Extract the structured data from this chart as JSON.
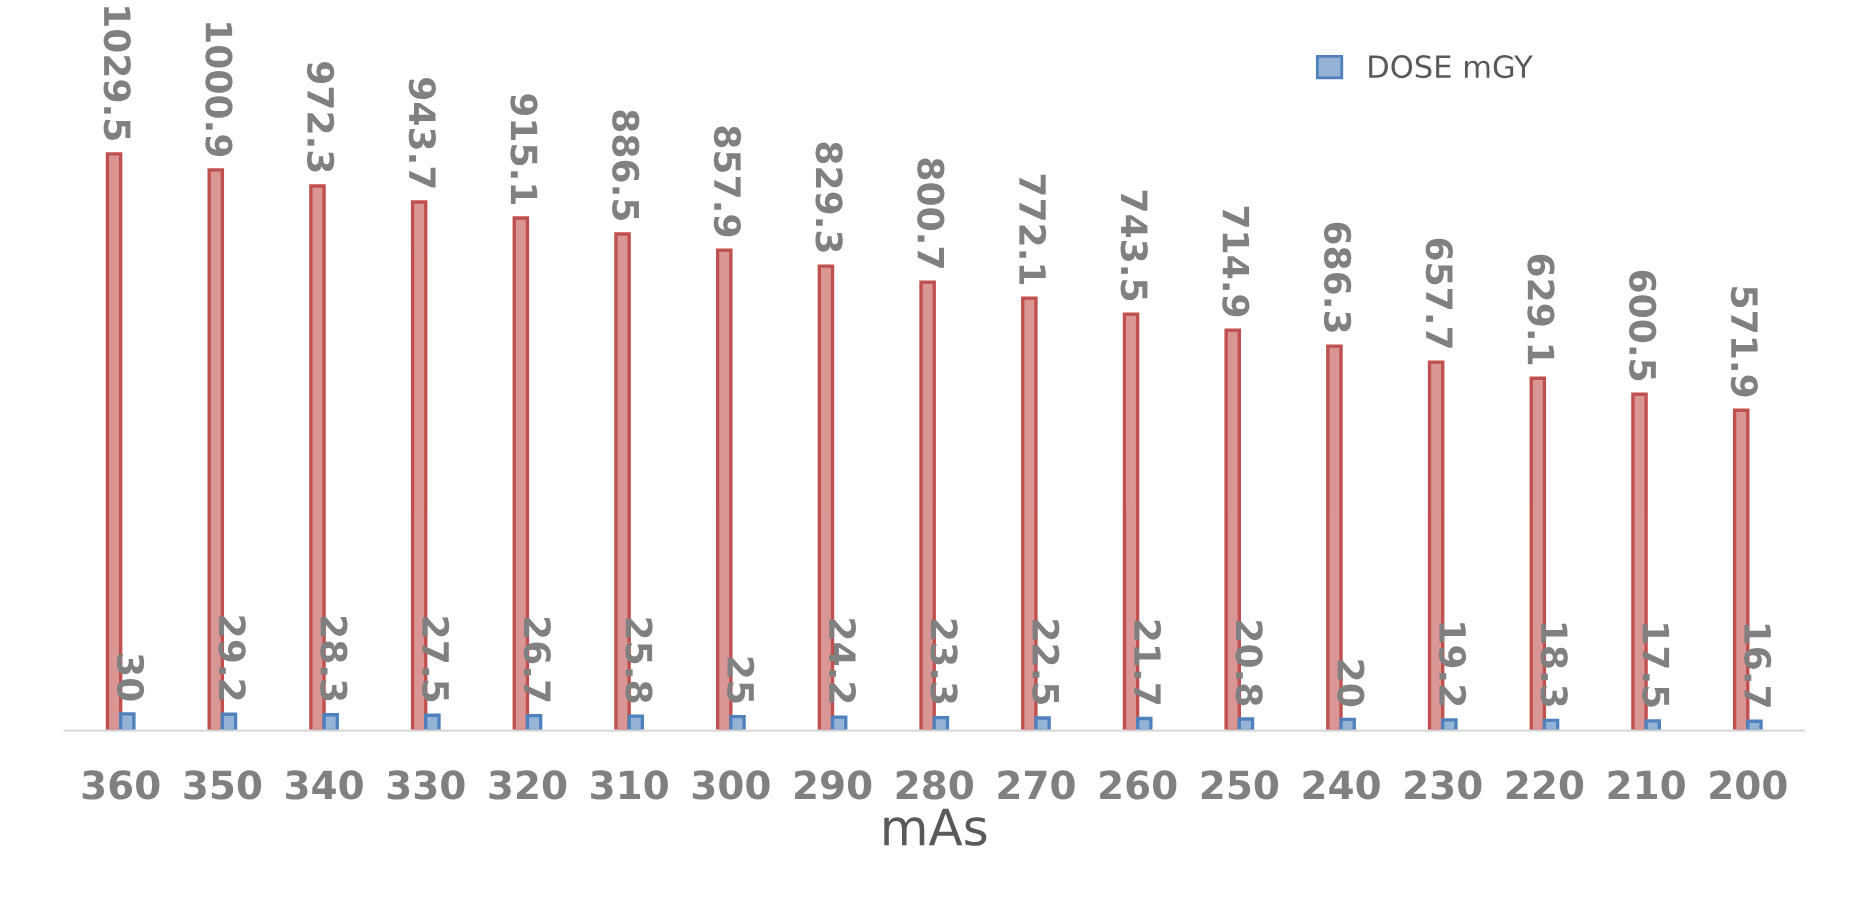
{
  "chart_data": {
    "type": "bar",
    "xlabel": "mAs",
    "categories": [
      "360",
      "350",
      "340",
      "330",
      "320",
      "310",
      "300",
      "290",
      "280",
      "270",
      "260",
      "250",
      "240",
      "230",
      "220",
      "210",
      "200"
    ],
    "series": [
      {
        "color": "#d99694",
        "values": [
          1029.5,
          1000.9,
          972.3,
          943.7,
          915.1,
          886.5,
          857.9,
          829.3,
          800.7,
          772.1,
          743.5,
          714.9,
          686.3,
          657.7,
          629.1,
          600.5,
          571.9
        ]
      },
      {
        "name": "DOSE mGY",
        "color": "#95b3d7",
        "values": [
          30,
          29.2,
          28.3,
          27.5,
          26.7,
          25.8,
          25,
          24.2,
          23.3,
          22.5,
          21.7,
          20.8,
          20,
          19.2,
          18.3,
          17.5,
          16.7
        ]
      }
    ],
    "data_labels": true,
    "legend": "top right",
    "grid": false
  }
}
